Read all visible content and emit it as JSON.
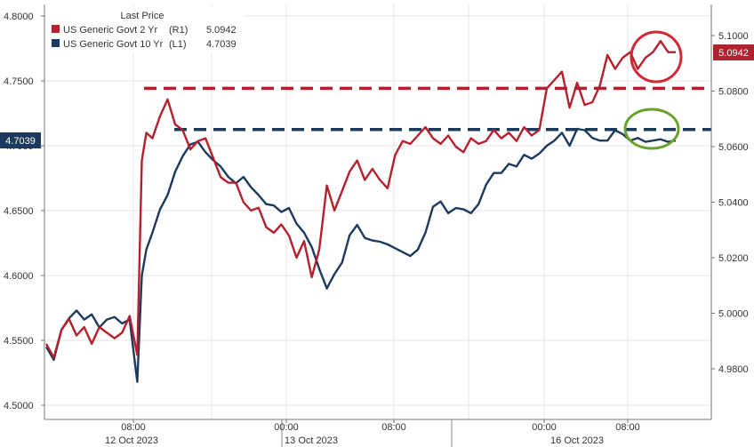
{
  "chart_data": {
    "type": "line",
    "legend": {
      "title": "Last Price",
      "position": "top-left",
      "entries": [
        {
          "name": "US Generic Govt 2 Yr",
          "axis_tag": "(R1)",
          "last": "5.0942",
          "color": "#b5202e"
        },
        {
          "name": "US Generic Govt 10 Yr",
          "axis_tag": "(L1)",
          "last": "4.7039",
          "color": "#1c3a5e"
        }
      ]
    },
    "x_axis": {
      "time_ticks": [
        "08:00",
        "00:00",
        "08:00",
        "00:00",
        "08:00"
      ],
      "date_labels": [
        "12 Oct 2023",
        "13 Oct 2023",
        "16 Oct 2023"
      ]
    },
    "y_left": {
      "ylim": [
        4.5,
        4.8
      ],
      "ticks": [
        "4.8000",
        "4.7500",
        "4.7000",
        "4.6500",
        "4.6000",
        "4.5500",
        "4.5000"
      ],
      "last_value_tag": "4.7039"
    },
    "y_right": {
      "ylim": [
        4.974,
        5.1075
      ],
      "ticks": [
        "5.1000",
        "5.0800",
        "5.0600",
        "5.0400",
        "5.0200",
        "5.0000",
        "4.9800"
      ],
      "last_value_tag": "5.0942"
    },
    "grid": true,
    "series": [
      {
        "name": "US Generic Govt 2 Yr",
        "axis": "right",
        "color": "#b5202e",
        "x": [
          0,
          0.5,
          1,
          1.5,
          2,
          2.5,
          3,
          3.5,
          4,
          4.5,
          5,
          5.5,
          6,
          6.3,
          6.6,
          7,
          7.5,
          8,
          8.5,
          9,
          9.5,
          10,
          10.5,
          11,
          11.5,
          12,
          12.5,
          13,
          13.5,
          14,
          14.5,
          15,
          15.5,
          16,
          16.5,
          17,
          17.5,
          18,
          18.5,
          19,
          19.5,
          20,
          20.5,
          21,
          21.5,
          22,
          22.5,
          23,
          23.5,
          24,
          24.5,
          25,
          25.5,
          26,
          26.5,
          27,
          27.5,
          28,
          28.5,
          29,
          29.5,
          30,
          30.5,
          31,
          31.5,
          32,
          32.5,
          33,
          33.5,
          34,
          34.5,
          35,
          35.5,
          36,
          36.5,
          37,
          37.5,
          38,
          38.5,
          39,
          39.5,
          40,
          40.5,
          41,
          41.5
        ],
        "values": [
          4.989,
          4.984,
          4.994,
          4.998,
          4.992,
          4.995,
          4.989,
          4.995,
          4.993,
          4.991,
          4.993,
          4.999,
          4.985,
          5.055,
          5.065,
          5.063,
          5.071,
          5.077,
          5.068,
          5.066,
          5.059,
          5.062,
          5.063,
          5.056,
          5.049,
          5.047,
          5.047,
          5.04,
          5.037,
          5.038,
          5.031,
          5.029,
          5.032,
          5.028,
          5.02,
          5.026,
          5.013,
          5.023,
          5.046,
          5.037,
          5.044,
          5.051,
          5.055,
          5.048,
          5.052,
          5.048,
          5.045,
          5.057,
          5.062,
          5.061,
          5.064,
          5.067,
          5.063,
          5.061,
          5.064,
          5.06,
          5.058,
          5.063,
          5.061,
          5.062,
          5.066,
          5.063,
          5.065,
          5.062,
          5.067,
          5.064,
          5.066,
          5.081,
          5.084,
          5.087,
          5.074,
          5.083,
          5.075,
          5.076,
          5.082,
          5.093,
          5.088,
          5.092,
          5.094,
          5.088,
          5.092,
          5.094,
          5.098,
          5.094,
          5.094
        ],
        "reference_level": 5.081
      },
      {
        "name": "US Generic Govt 10 Yr",
        "axis": "left",
        "color": "#1c3a5e",
        "x": [
          0,
          0.5,
          1,
          1.5,
          2,
          2.5,
          3,
          3.5,
          4,
          4.5,
          5,
          5.5,
          6,
          6.3,
          6.6,
          7,
          7.5,
          8,
          8.5,
          9,
          9.5,
          10,
          10.5,
          11,
          11.5,
          12,
          12.5,
          13,
          13.5,
          14,
          14.5,
          15,
          15.5,
          16,
          16.5,
          17,
          17.5,
          18,
          18.5,
          19,
          19.5,
          20,
          20.5,
          21,
          21.5,
          22,
          22.5,
          23,
          23.5,
          24,
          24.5,
          25,
          25.5,
          26,
          26.5,
          27,
          27.5,
          28,
          28.5,
          29,
          29.5,
          30,
          30.5,
          31,
          31.5,
          32,
          32.5,
          33,
          33.5,
          34,
          34.5,
          35,
          35.5,
          36,
          36.5,
          37,
          37.5,
          38,
          38.5,
          39,
          39.5,
          40,
          40.5,
          41,
          41.5
        ],
        "values": [
          4.545,
          4.535,
          4.558,
          4.567,
          4.573,
          4.566,
          4.57,
          4.56,
          4.566,
          4.568,
          4.563,
          4.566,
          4.518,
          4.6,
          4.62,
          4.633,
          4.651,
          4.662,
          4.68,
          4.692,
          4.701,
          4.703,
          4.695,
          4.689,
          4.684,
          4.676,
          4.671,
          4.676,
          4.668,
          4.662,
          4.655,
          4.654,
          4.649,
          4.652,
          4.64,
          4.633,
          4.622,
          4.605,
          4.59,
          4.601,
          4.61,
          4.631,
          4.639,
          4.629,
          4.627,
          4.626,
          4.624,
          4.621,
          4.618,
          4.615,
          4.62,
          4.633,
          4.653,
          4.657,
          4.648,
          4.652,
          4.651,
          4.648,
          4.655,
          4.67,
          4.679,
          4.679,
          4.686,
          4.684,
          4.693,
          4.69,
          4.694,
          4.7,
          4.704,
          4.71,
          4.7,
          4.713,
          4.712,
          4.706,
          4.704,
          4.704,
          4.712,
          4.709,
          4.704,
          4.706,
          4.703,
          4.704,
          4.705,
          4.703,
          4.704
        ],
        "reference_level": 4.7125
      }
    ]
  }
}
